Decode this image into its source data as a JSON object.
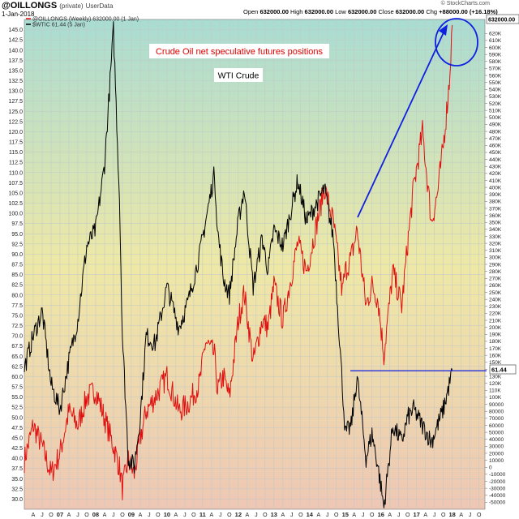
{
  "header": {
    "symbol": "@OILLONGS",
    "symbol_note": "(private)",
    "data_source": "UserData",
    "date": "1-Jan-2018",
    "credit": "© StockCharts.com",
    "quote": {
      "open_label": "Open",
      "open": "632000.00",
      "high_label": "High",
      "high": "632000.00",
      "low_label": "Low",
      "low": "632000.00",
      "close_label": "Close",
      "close": "632000.00",
      "chg_label": "Chg",
      "chg": "+88000.00 (+16.18%)"
    }
  },
  "legend": [
    {
      "label": "@OILLONGS (Weekly) 632000.00 (1 Jan)",
      "color": "#e01010"
    },
    {
      "label": "$WTIC 61.44 (5 Jan)",
      "color": "#000000"
    }
  ],
  "annotations": {
    "title": "Crude Oil net speculative futures positions",
    "subtitle": "WTI Crude",
    "title_color": "#e00000",
    "arrow_color": "#1020e0"
  },
  "axis_badges": {
    "left_last": "61.44",
    "right_last": "632000.00"
  },
  "colors": {
    "oil_line": "#000000",
    "positions_line": "#e01010",
    "gradient_top": "#a9dcd2",
    "gradient_mid": "#eee8a6",
    "gradient_bottom": "#eec7b4",
    "grid": "#c0c8c8",
    "support_line": "#2030e0"
  },
  "chart_data": {
    "type": "line",
    "x_range": [
      "2006-01",
      "2018-12"
    ],
    "x_tick_labels": [
      "A",
      "J",
      "O",
      "07",
      "A",
      "J",
      "O",
      "08",
      "A",
      "J",
      "O",
      "09",
      "A",
      "J",
      "O",
      "10",
      "A",
      "J",
      "O",
      "11",
      "A",
      "J",
      "O",
      "12",
      "A",
      "J",
      "O",
      "13",
      "A",
      "J",
      "O",
      "14",
      "A",
      "J",
      "O",
      "15",
      "A",
      "J",
      "O",
      "16",
      "A",
      "J",
      "O",
      "17",
      "A",
      "J",
      "O",
      "18",
      "A",
      "J",
      "O"
    ],
    "y_left": {
      "ylim": [
        27.5,
        147.5
      ],
      "ticks": [
        "30.0",
        "32.5",
        "35.0",
        "37.5",
        "40.0",
        "42.5",
        "45.0",
        "47.5",
        "50.0",
        "52.5",
        "55.0",
        "57.5",
        "60.0",
        "62.5",
        "65.0",
        "67.5",
        "70.0",
        "72.5",
        "75.0",
        "77.5",
        "80.0",
        "82.5",
        "85.0",
        "87.5",
        "90.0",
        "92.5",
        "95.0",
        "97.5",
        "100.0",
        "102.5",
        "105.0",
        "107.5",
        "110.0",
        "112.5",
        "115.0",
        "117.5",
        "120.0",
        "122.5",
        "125.0",
        "127.5",
        "130.0",
        "132.5",
        "135.0",
        "137.5",
        "140.0",
        "142.5",
        "145.0"
      ]
    },
    "y_right": {
      "ylim": [
        -60000,
        640000
      ],
      "ticks": [
        "-50000",
        "-40000",
        "-30000",
        "-20000",
        "-10000",
        "0",
        "10000",
        "20000",
        "30000",
        "40000",
        "50000",
        "60000",
        "70000",
        "80000",
        "90000",
        "100K",
        "110K",
        "120K",
        "130K",
        "140K",
        "150K",
        "160K",
        "170K",
        "180K",
        "190K",
        "200K",
        "210K",
        "220K",
        "230K",
        "240K",
        "250K",
        "260K",
        "270K",
        "280K",
        "290K",
        "300K",
        "310K",
        "320K",
        "330K",
        "340K",
        "350K",
        "360K",
        "370K",
        "380K",
        "390K",
        "400K",
        "410K",
        "420K",
        "430K",
        "440K",
        "450K",
        "460K",
        "470K",
        "480K",
        "490K",
        "500K",
        "510K",
        "520K",
        "530K",
        "540K",
        "550K",
        "560K",
        "570K",
        "580K",
        "590K",
        "600K",
        "610K",
        "620K"
      ]
    },
    "series": [
      {
        "name": "$WTIC",
        "axis": "left",
        "x": [
          "2006-01",
          "2006-04",
          "2006-07",
          "2006-10",
          "2007-01",
          "2007-04",
          "2007-07",
          "2007-10",
          "2008-01",
          "2008-04",
          "2008-07",
          "2008-09",
          "2008-10",
          "2008-12",
          "2009-02",
          "2009-04",
          "2009-06",
          "2009-09",
          "2010-01",
          "2010-05",
          "2010-08",
          "2010-12",
          "2011-02",
          "2011-05",
          "2011-06",
          "2011-08",
          "2011-10",
          "2012-01",
          "2012-03",
          "2012-06",
          "2012-09",
          "2012-11",
          "2013-01",
          "2013-04",
          "2013-09",
          "2013-12",
          "2014-03",
          "2014-06",
          "2014-09",
          "2014-12",
          "2015-01",
          "2015-03",
          "2015-05",
          "2015-08",
          "2015-10",
          "2015-12",
          "2016-02",
          "2016-05",
          "2016-08",
          "2016-10",
          "2016-12",
          "2017-03",
          "2017-06",
          "2017-08",
          "2017-10",
          "2017-12",
          "2018-01"
        ],
        "values": [
          62,
          70,
          76,
          58,
          52,
          64,
          74,
          92,
          96,
          112,
          145,
          104,
          70,
          40,
          38,
          50,
          70,
          68,
          82,
          72,
          78,
          90,
          98,
          110,
          96,
          84,
          80,
          98,
          106,
          82,
          94,
          86,
          96,
          92,
          108,
          98,
          102,
          106,
          94,
          58,
          46,
          48,
          60,
          40,
          46,
          38,
          28,
          48,
          44,
          50,
          52,
          48,
          44,
          48,
          52,
          58,
          61.44
        ]
      },
      {
        "name": "@OILLONGS",
        "axis": "right",
        "x": [
          "2006-01",
          "2006-04",
          "2006-07",
          "2006-10",
          "2007-01",
          "2007-04",
          "2007-07",
          "2007-10",
          "2008-01",
          "2008-04",
          "2008-07",
          "2008-09",
          "2008-10",
          "2008-12",
          "2009-02",
          "2009-04",
          "2009-06",
          "2009-09",
          "2010-01",
          "2010-05",
          "2010-08",
          "2010-12",
          "2011-02",
          "2011-05",
          "2011-06",
          "2011-08",
          "2011-10",
          "2012-01",
          "2012-03",
          "2012-06",
          "2012-09",
          "2012-11",
          "2013-01",
          "2013-04",
          "2013-09",
          "2013-12",
          "2014-03",
          "2014-06",
          "2014-09",
          "2014-12",
          "2015-01",
          "2015-03",
          "2015-05",
          "2015-08",
          "2015-10",
          "2015-12",
          "2016-02",
          "2016-05",
          "2016-08",
          "2016-10",
          "2016-12",
          "2017-03",
          "2017-06",
          "2017-08",
          "2017-10",
          "2017-12",
          "2018-01"
        ],
        "values": [
          10000,
          60000,
          30000,
          -10000,
          20000,
          80000,
          60000,
          100000,
          110000,
          70000,
          30000,
          0,
          -30000,
          10000,
          -10000,
          40000,
          80000,
          100000,
          130000,
          80000,
          90000,
          120000,
          180000,
          160000,
          110000,
          130000,
          100000,
          210000,
          250000,
          150000,
          210000,
          200000,
          260000,
          210000,
          320000,
          280000,
          340000,
          400000,
          350000,
          250000,
          280000,
          300000,
          340000,
          230000,
          260000,
          240000,
          160000,
          280000,
          230000,
          320000,
          400000,
          480000,
          350000,
          390000,
          460000,
          550000,
          632000
        ]
      }
    ],
    "support_level": 61.44,
    "grid": true,
    "legend_position": "top-left"
  }
}
